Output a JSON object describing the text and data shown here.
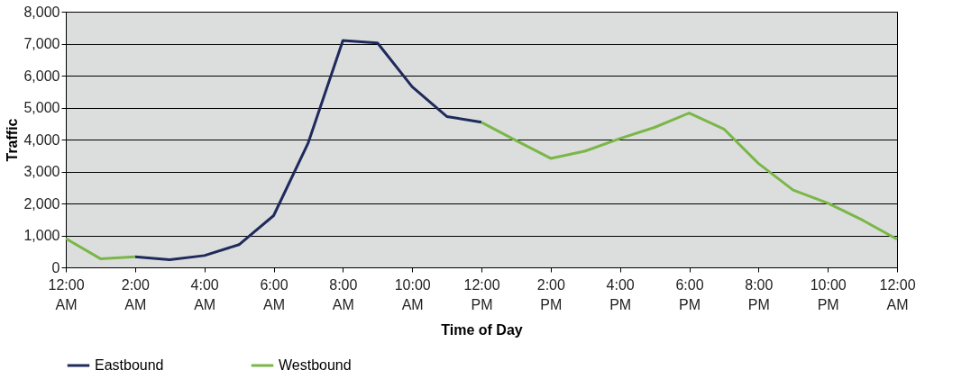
{
  "chart_data": {
    "type": "line",
    "xlabel": "Time of Day",
    "ylabel": "Traffic",
    "x": [
      0,
      1,
      2,
      3,
      4,
      5,
      6,
      7,
      8,
      9,
      10,
      11,
      12,
      13,
      14,
      15,
      16,
      17,
      18,
      19,
      20,
      21,
      22,
      23,
      24
    ],
    "series": [
      {
        "name": "Eastbound",
        "color": "#1f2a5c",
        "values": [
          null,
          null,
          330,
          240,
          370,
          710,
          1620,
          3900,
          7100,
          7020,
          5650,
          4720,
          4540,
          null,
          null,
          null,
          null,
          null,
          null,
          null,
          null,
          null,
          null,
          null,
          null
        ]
      },
      {
        "name": "Westbound",
        "color": "#7ab648",
        "values": [
          900,
          270,
          330,
          null,
          null,
          null,
          null,
          null,
          null,
          null,
          null,
          null,
          4540,
          3970,
          3410,
          3640,
          4030,
          4380,
          4830,
          4330,
          3250,
          2420,
          2010,
          1480,
          880
        ]
      }
    ],
    "xlim": [
      0,
      24
    ],
    "xticks": [
      {
        "value": 0,
        "label": "12:00 AM"
      },
      {
        "value": 2,
        "label": "2:00 AM"
      },
      {
        "value": 4,
        "label": "4:00 AM"
      },
      {
        "value": 6,
        "label": "6:00 AM"
      },
      {
        "value": 8,
        "label": "8:00 AM"
      },
      {
        "value": 10,
        "label": "10:00 AM"
      },
      {
        "value": 12,
        "label": "12:00 PM"
      },
      {
        "value": 14,
        "label": "2:00 PM"
      },
      {
        "value": 16,
        "label": "4:00 PM"
      },
      {
        "value": 18,
        "label": "6:00 PM"
      },
      {
        "value": 20,
        "label": "8:00 PM"
      },
      {
        "value": 22,
        "label": "10:00 PM"
      },
      {
        "value": 24,
        "label": "12:00 AM"
      }
    ],
    "ylim": [
      0,
      8000
    ],
    "yticks": [
      0,
      {
        "value": 1000,
        "label": "1,000"
      },
      {
        "value": 2000,
        "label": "2,000"
      },
      {
        "value": 3000,
        "label": "3,000"
      },
      {
        "value": 4000,
        "label": "4,000"
      },
      {
        "value": 5000,
        "label": "5,000"
      },
      {
        "value": 6000,
        "label": "6,000"
      },
      {
        "value": 7000,
        "label": "7,000"
      },
      {
        "value": 8000,
        "label": "8,000"
      }
    ],
    "grid": "y",
    "legend": "bottom",
    "marker": "none",
    "line_style": "solid"
  }
}
